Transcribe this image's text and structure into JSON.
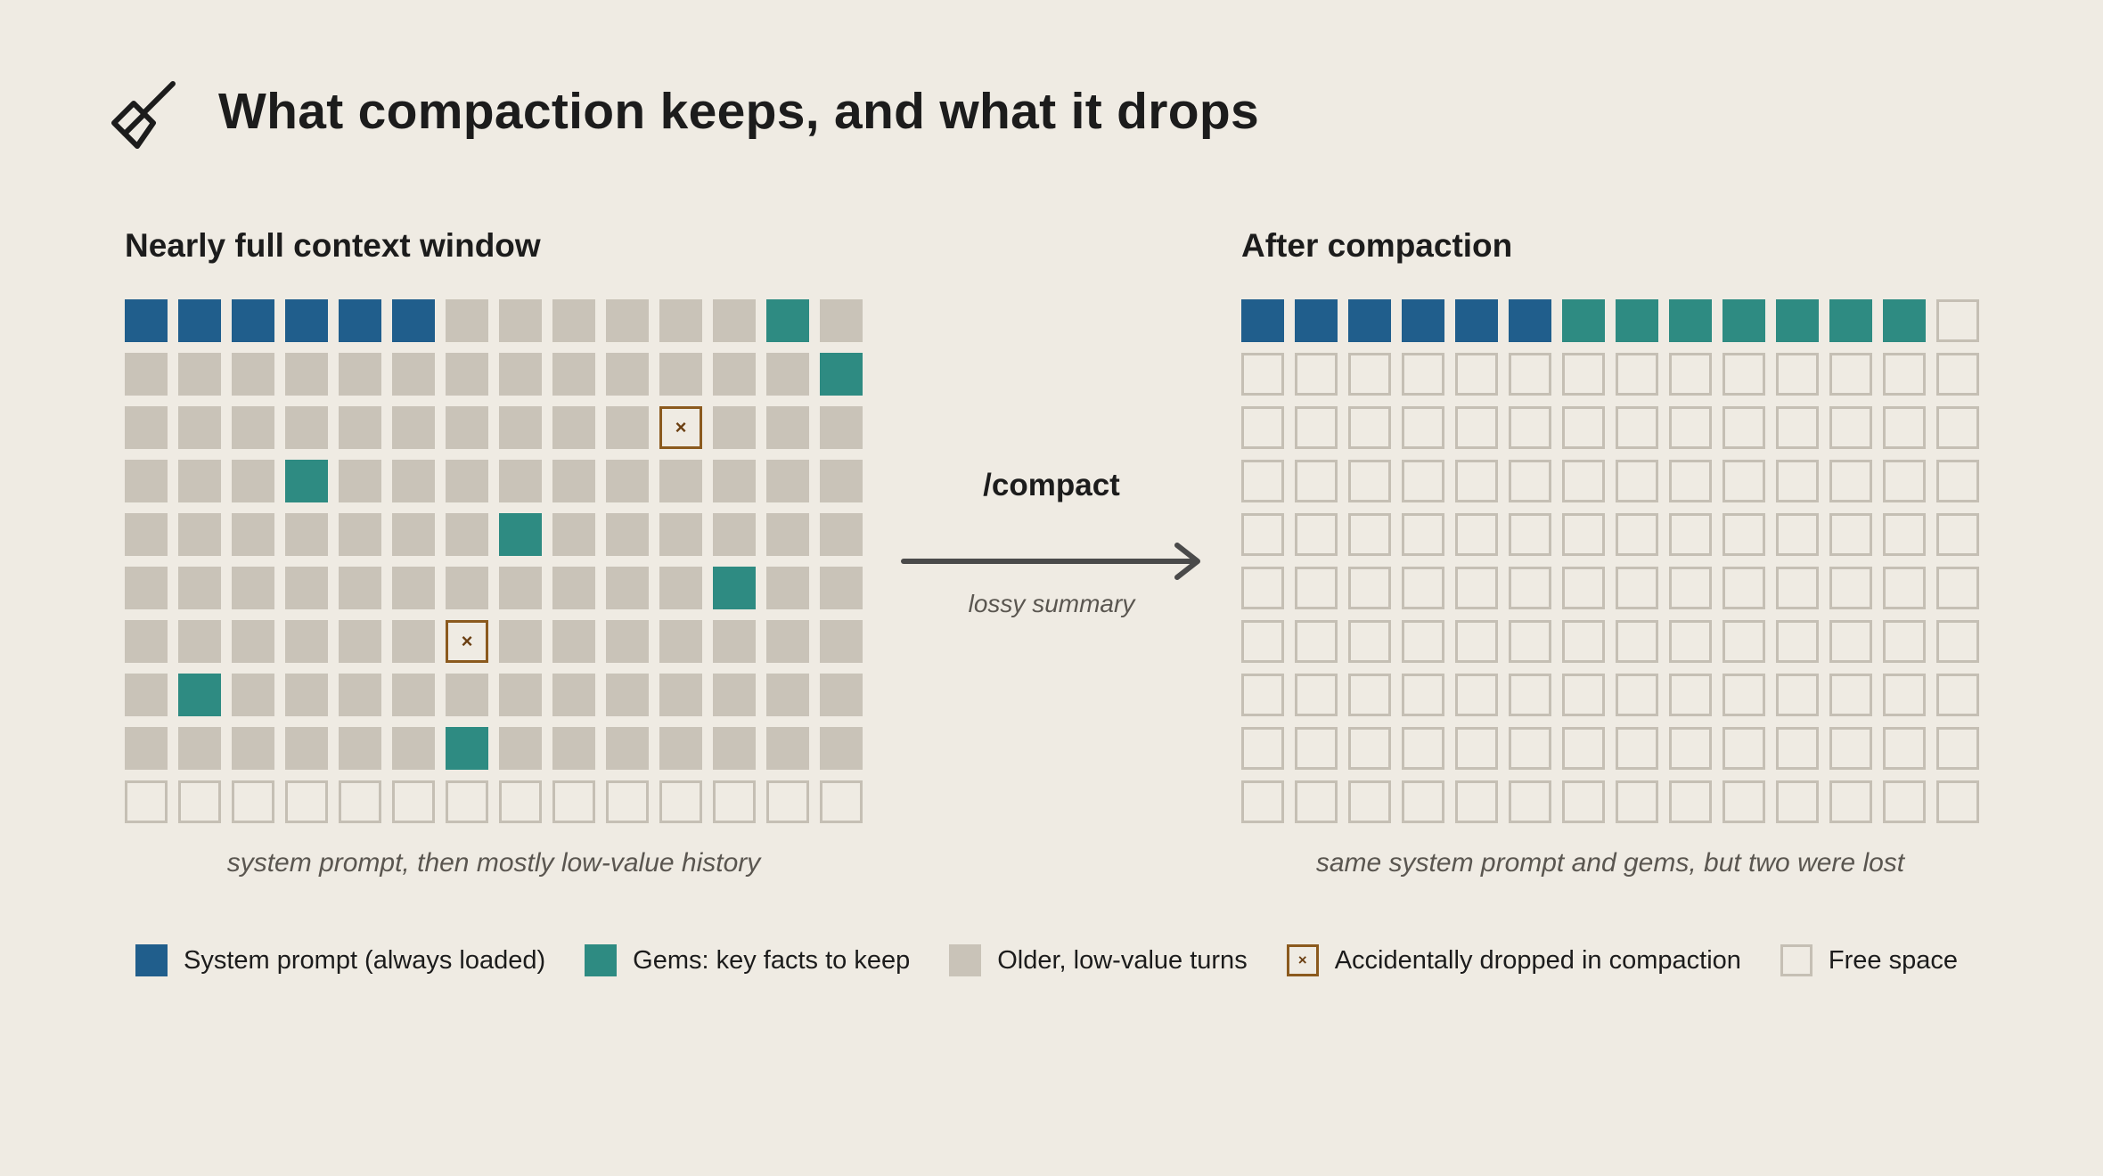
{
  "title": "What compaction keeps, and what it drops",
  "icon": "broom-icon",
  "colors": {
    "background": "#efebe3",
    "system": "#205e8c",
    "gem": "#2e8b82",
    "old": "#c9c3b8",
    "dropped_border": "#8b5a1e",
    "free_border": "#c5bfb4"
  },
  "left_panel": {
    "title": "Nearly full context window",
    "caption": "system prompt, then mostly low-value history",
    "rows": [
      "SSSSSSOOOOOOGO",
      "OOOOOOOOOOOOOG",
      "OOOOOOOOOOXOOO",
      "OOOGOOOOOOOOOO",
      "OOOOOOOGOOOOOO",
      "OOOOOOOOOOOGOO",
      "OOOOOOXOOOOOOO",
      "OGOOOOOOOOOOOO",
      "OOOOOOGOOOOOOO",
      "FFFFFFFFFFFFFF"
    ]
  },
  "right_panel": {
    "title": "After compaction",
    "caption": "same system prompt and gems, but two were lost",
    "rows": [
      "SSSSSSGGGGGGGF",
      "FFFFFFFFFFFFFF",
      "FFFFFFFFFFFFFF",
      "FFFFFFFFFFFFFF",
      "FFFFFFFFFFFFFF",
      "FFFFFFFFFFFFFF",
      "FFFFFFFFFFFFFF",
      "FFFFFFFFFFFFFF",
      "FFFFFFFFFFFFFF",
      "FFFFFFFFFFFFFF"
    ]
  },
  "cell_legend": {
    "S": "system",
    "G": "gem",
    "O": "old",
    "X": "dropped",
    "F": "free"
  },
  "dropped_mark": "×",
  "transition": {
    "command": "/compact",
    "note": "lossy summary"
  },
  "legend": [
    {
      "kind": "system",
      "label": "System prompt (always loaded)"
    },
    {
      "kind": "gem",
      "label": "Gems: key facts to keep"
    },
    {
      "kind": "old",
      "label": "Older, low-value turns"
    },
    {
      "kind": "dropped",
      "label": "Accidentally dropped in compaction"
    },
    {
      "kind": "free",
      "label": "Free space"
    }
  ]
}
